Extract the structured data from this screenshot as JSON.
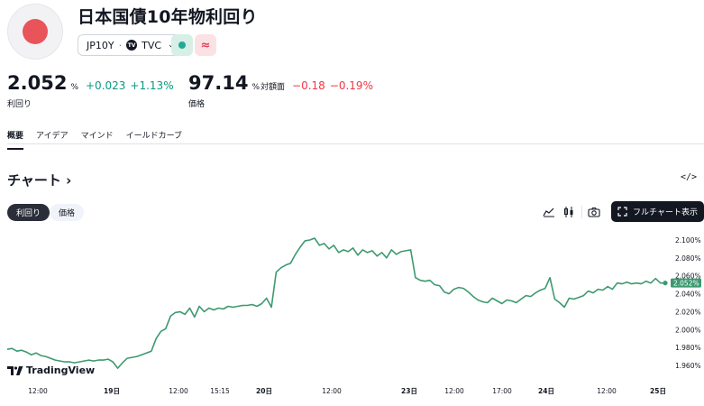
{
  "header": {
    "title": "日本国債10年物利回り",
    "symbol": "JP10Y",
    "separator": "·",
    "exchange": "TVC",
    "approx_symbol": "≈"
  },
  "quote_yield": {
    "value": "2.052",
    "unit": "%",
    "change": "+0.023",
    "change_pct": "+1.13%",
    "label": "利回り"
  },
  "quote_price": {
    "value": "97.14",
    "unit": "%",
    "unit_sub": "対額面",
    "change": "−0.18",
    "change_pct": "−0.19%",
    "label": "価格"
  },
  "tabs": [
    {
      "label": "概要"
    },
    {
      "label": "アイデア"
    },
    {
      "label": "マインド"
    },
    {
      "label": "イールドカーブ"
    }
  ],
  "chart_section": {
    "title": "チャート",
    "title_arrow": "›",
    "embed_icon": "</>"
  },
  "chips": {
    "yield": "利回り",
    "price": "価格"
  },
  "toolbar": {
    "fullchart_label": "フルチャート表示"
  },
  "watermark": {
    "text": "TradingView"
  },
  "colors": {
    "line": "#3d9970",
    "accent_pos": "#089981",
    "accent_neg": "#f23645",
    "flag_red": "#e8545a"
  },
  "icons": [
    "area-chart-icon",
    "candlestick-icon",
    "camera-icon",
    "fullscreen-icon",
    "code-embed-icon",
    "tradingview-logo-icon"
  ],
  "chart_data": {
    "type": "line",
    "ylim": [
      1.947,
      2.108
    ],
    "y_ticks": [
      "2.100%",
      "2.080%",
      "2.060%",
      "2.040%",
      "2.020%",
      "2.000%",
      "1.980%",
      "1.960%"
    ],
    "y_tick_values": [
      2.1,
      2.08,
      2.06,
      2.04,
      2.02,
      2.0,
      1.98,
      1.96
    ],
    "x_ticks": [
      {
        "label": "12:00",
        "bold": false
      },
      {
        "label": "19日",
        "bold": true
      },
      {
        "label": "12:00",
        "bold": false
      },
      {
        "label": "15:15",
        "bold": false
      },
      {
        "label": "20日",
        "bold": true
      },
      {
        "label": "12:00",
        "bold": false
      },
      {
        "label": "23日",
        "bold": true
      },
      {
        "label": "12:00",
        "bold": false
      },
      {
        "label": "17:00",
        "bold": false
      },
      {
        "label": "24日",
        "bold": true
      },
      {
        "label": "12:00",
        "bold": false
      },
      {
        "label": "25日",
        "bold": true
      }
    ],
    "last_value_label": "2.052%",
    "series": [
      {
        "values": [
          1.978,
          1.979,
          1.976,
          1.977,
          1.975,
          1.972,
          1.974,
          1.971,
          1.97,
          1.968,
          1.966,
          1.965,
          1.964,
          1.964,
          1.963,
          1.964,
          1.965,
          1.966,
          1.965,
          1.966,
          1.966,
          1.967,
          1.964,
          1.957,
          1.963,
          1.968,
          1.969,
          1.97,
          1.972,
          1.974,
          1.976,
          1.99,
          1.998,
          2.001,
          2.015,
          2.019,
          2.02,
          2.017,
          2.024,
          2.014,
          2.026,
          2.02,
          2.024,
          2.022,
          2.024,
          2.023,
          2.026,
          2.025,
          2.026,
          2.027,
          2.027,
          2.028,
          2.026,
          2.029,
          2.035,
          2.025,
          2.064,
          2.069,
          2.072,
          2.074,
          2.084,
          2.092,
          2.099,
          2.1,
          2.102,
          2.094,
          2.096,
          2.09,
          2.094,
          2.086,
          2.089,
          2.087,
          2.091,
          2.083,
          2.089,
          2.086,
          2.088,
          2.082,
          2.086,
          2.08,
          2.089,
          2.084,
          2.087,
          2.088,
          2.089,
          2.058,
          2.055,
          2.054,
          2.055,
          2.05,
          2.049,
          2.042,
          2.04,
          2.045,
          2.047,
          2.046,
          2.042,
          2.037,
          2.033,
          2.031,
          2.03,
          2.035,
          2.032,
          2.029,
          2.033,
          2.032,
          2.03,
          2.034,
          2.038,
          2.037,
          2.041,
          2.044,
          2.046,
          2.058,
          2.034,
          2.03,
          2.025,
          2.035,
          2.034,
          2.036,
          2.038,
          2.043,
          2.041,
          2.045,
          2.044,
          2.048,
          2.045,
          2.052,
          2.051,
          2.053,
          2.051,
          2.052,
          2.051,
          2.054,
          2.052,
          2.057,
          2.052,
          2.052
        ]
      }
    ]
  }
}
